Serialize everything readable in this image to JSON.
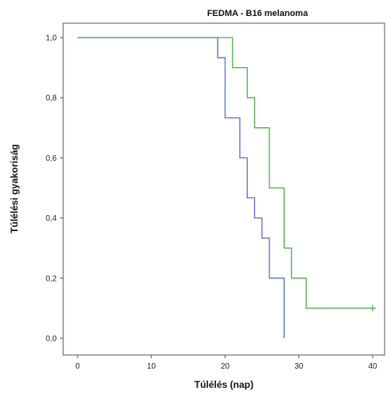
{
  "chart_data": {
    "type": "line",
    "subtype": "kaplan-meier-step",
    "title": "FEDMA - B16 melanoma",
    "xlabel": "Túlélés (nap)",
    "ylabel": "Túlélési gyakoriság",
    "xlim": [
      0,
      40
    ],
    "ylim": [
      0,
      1.0
    ],
    "x_ticks": [
      0,
      10,
      20,
      30,
      40
    ],
    "x_tick_labels": [
      "0",
      "10",
      "20",
      "30",
      "40"
    ],
    "y_ticks": [
      0,
      0.2,
      0.4,
      0.6,
      0.8,
      1.0
    ],
    "y_tick_labels": [
      "0,0",
      "0,2",
      "0,4",
      "0,6",
      "0,8",
      "1,0"
    ],
    "grid": false,
    "legend": "none",
    "series": [
      {
        "color": "#5470c6",
        "x": [
          0,
          19,
          20,
          22,
          23,
          24,
          25,
          26,
          28
        ],
        "y": [
          1.0,
          0.933,
          0.733,
          0.6,
          0.467,
          0.4,
          0.333,
          0.2,
          0.0
        ],
        "censored": []
      },
      {
        "color": "#4cae4c",
        "x": [
          0,
          21,
          23,
          24,
          25,
          26,
          28,
          29,
          31
        ],
        "y": [
          1.0,
          0.9,
          0.8,
          0.7,
          0.7,
          0.5,
          0.3,
          0.2,
          0.1
        ],
        "end_x": 40,
        "censored": [
          40
        ]
      }
    ]
  }
}
